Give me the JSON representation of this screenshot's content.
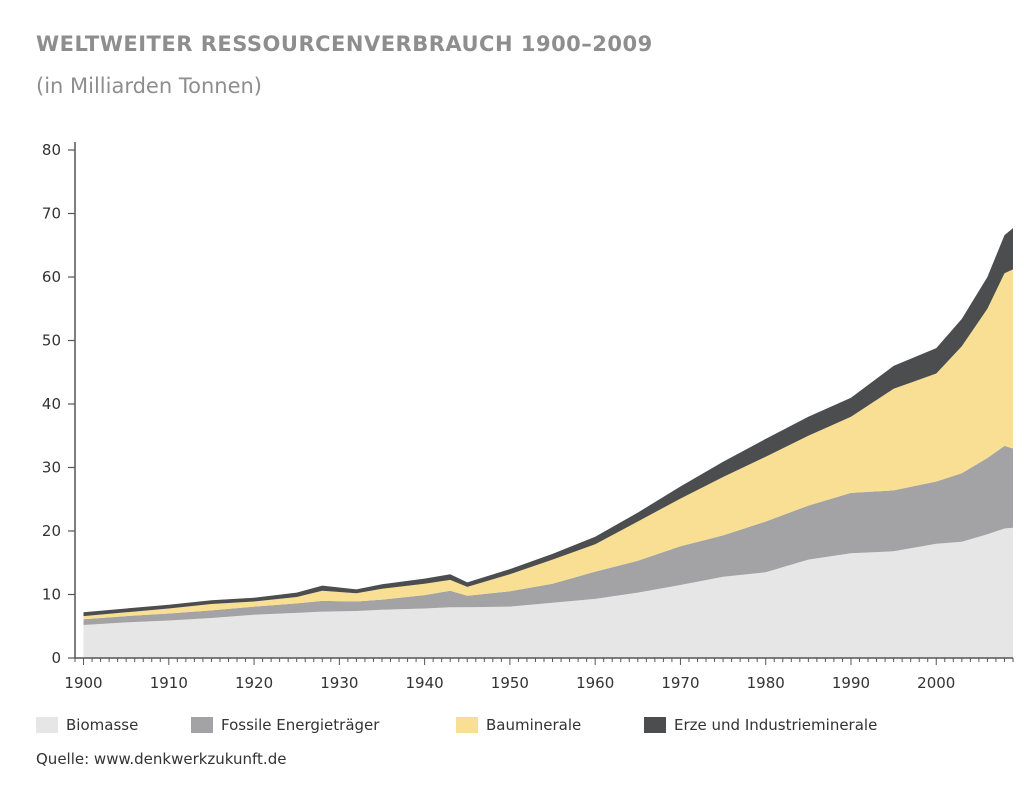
{
  "title": "WELTWEITER RESSOURCENVERBRAUCH 1900–2009",
  "subtitle": "(in Milliarden Tonnen)",
  "source": "Quelle: www.denkwerkzukunft.de",
  "chart_data": {
    "type": "area",
    "stacked": true,
    "title": "WELTWEITER RESSOURCENVERBRAUCH 1900–2009",
    "subtitle": "(in Milliarden Tonnen)",
    "xlabel": "",
    "ylabel": "",
    "xlim": [
      1899,
      2009
    ],
    "ylim": [
      0,
      80
    ],
    "yticks": [
      0,
      10,
      20,
      30,
      40,
      50,
      60,
      70,
      80
    ],
    "xticks": [
      1900,
      1910,
      1920,
      1930,
      1940,
      1950,
      1960,
      1970,
      1980,
      1990,
      2000
    ],
    "grid": false,
    "legend_position": "bottom",
    "x": [
      1900,
      1905,
      1910,
      1915,
      1920,
      1925,
      1928,
      1932,
      1935,
      1940,
      1943,
      1945,
      1950,
      1955,
      1960,
      1965,
      1970,
      1975,
      1980,
      1985,
      1990,
      1995,
      2000,
      2003,
      2006,
      2008,
      2009
    ],
    "series": [
      {
        "name": "Biomasse",
        "color": "#e6e6e6",
        "values": [
          5.2,
          5.6,
          5.9,
          6.3,
          6.8,
          7.1,
          7.3,
          7.4,
          7.6,
          7.8,
          8.0,
          8.0,
          8.1,
          8.7,
          9.3,
          10.3,
          11.5,
          12.8,
          13.5,
          15.5,
          16.5,
          16.8,
          18.0,
          18.3,
          19.5,
          20.4,
          20.5
        ]
      },
      {
        "name": "Fossile Energieträger",
        "color": "#a3a3a5",
        "values": [
          0.9,
          1.0,
          1.1,
          1.2,
          1.3,
          1.5,
          1.7,
          1.5,
          1.6,
          2.1,
          2.6,
          1.8,
          2.4,
          3.0,
          4.3,
          5.0,
          6.1,
          6.5,
          8.0,
          8.5,
          9.5,
          9.6,
          9.8,
          10.8,
          12.0,
          13.0,
          12.5
        ]
      },
      {
        "name": "Bauminerale",
        "color": "#f8df93",
        "values": [
          0.5,
          0.6,
          0.8,
          1.0,
          0.8,
          1.0,
          1.6,
          1.3,
          1.7,
          1.8,
          1.7,
          1.4,
          2.7,
          3.8,
          4.3,
          6.2,
          7.5,
          9.2,
          10.2,
          11.0,
          12.0,
          16.0,
          17.0,
          20.0,
          23.5,
          27.2,
          28.2
        ]
      },
      {
        "name": "Erze und Industrieminerale",
        "color": "#4c4d4f",
        "values": [
          0.6,
          0.6,
          0.6,
          0.6,
          0.6,
          0.7,
          0.8,
          0.6,
          0.7,
          0.8,
          0.9,
          0.7,
          0.8,
          0.9,
          1.2,
          1.4,
          1.9,
          2.4,
          2.8,
          3.0,
          3.0,
          3.6,
          4.0,
          4.3,
          5.0,
          6.0,
          6.5
        ]
      }
    ]
  }
}
